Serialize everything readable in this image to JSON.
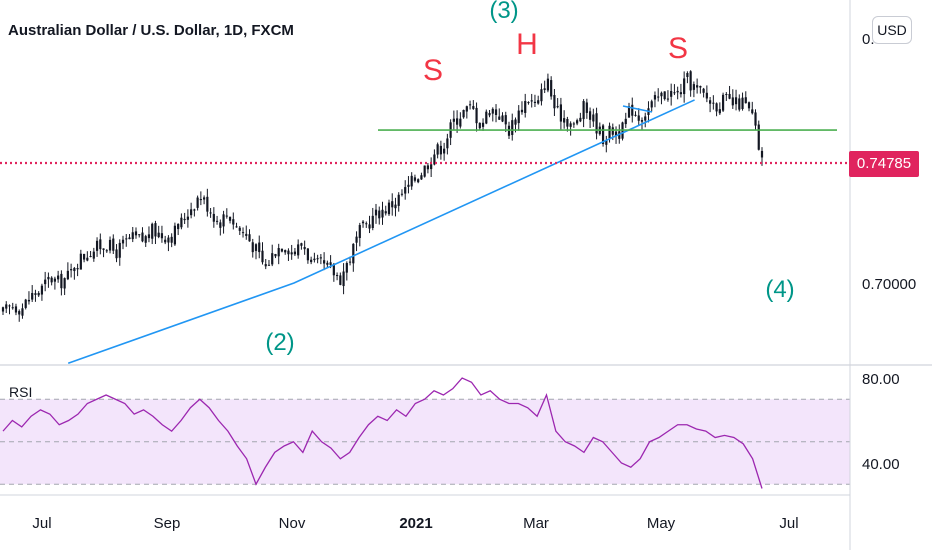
{
  "chart_data": [
    {
      "type": "candlestick",
      "title": "Australian Dollar / U.S. Dollar, 1D, FXCM",
      "currency": "USD",
      "last_price": "0.74785",
      "y_tick_labels": [
        "0.70000"
      ],
      "y_partial_label": "0.",
      "x_tick_labels": [
        "Jul",
        "Sep",
        "Nov",
        "2021",
        "Mar",
        "May",
        "Jul"
      ],
      "annotations": [
        {
          "text": "S",
          "color": "#f23645"
        },
        {
          "text": "H",
          "color": "#f23645"
        },
        {
          "text": "S",
          "color": "#f23645"
        },
        {
          "text": "(2)",
          "color": "#009688"
        },
        {
          "text": "(3)",
          "color": "#009688"
        },
        {
          "text": "(4)",
          "color": "#009688"
        }
      ],
      "close_series_approx": [
        0.688,
        0.691,
        0.69,
        0.695,
        0.697,
        0.702,
        0.7,
        0.703,
        0.709,
        0.712,
        0.714,
        0.716,
        0.712,
        0.716,
        0.718,
        0.717,
        0.721,
        0.719,
        0.719,
        0.724,
        0.73,
        0.735,
        0.73,
        0.724,
        0.728,
        0.722,
        0.719,
        0.713,
        0.706,
        0.713,
        0.716,
        0.712,
        0.716,
        0.707,
        0.707,
        0.705,
        0.702,
        0.71,
        0.72,
        0.724,
        0.728,
        0.73,
        0.733,
        0.737,
        0.742,
        0.746,
        0.752,
        0.755,
        0.764,
        0.768,
        0.77,
        0.763,
        0.77,
        0.767,
        0.761,
        0.768,
        0.774,
        0.77,
        0.782,
        0.768,
        0.766,
        0.762,
        0.77,
        0.765,
        0.758,
        0.761,
        0.76,
        0.77,
        0.766,
        0.77,
        0.774,
        0.776,
        0.775,
        0.781,
        0.777,
        0.774,
        0.771,
        0.773,
        0.771,
        0.772,
        0.766,
        0.748
      ],
      "lines": [
        {
          "name": "trendline",
          "color": "#2196f3",
          "points": [
            [
              "2020-07-14",
              0.668
            ],
            [
              "2020-11-02",
              0.7
            ],
            [
              "2021-05-17",
              0.773
            ]
          ]
        },
        {
          "name": "neckline",
          "color": "#4caf50",
          "value": 0.761
        },
        {
          "name": "last-price-line",
          "color": "#e0245e",
          "value": 0.74785
        }
      ]
    },
    {
      "type": "line",
      "name": "RSI",
      "y_tick_labels": [
        "80.00",
        "40.00"
      ],
      "band": [
        30,
        70
      ],
      "midline": 50,
      "color": "#9c27b0",
      "values_approx": [
        55,
        60,
        57,
        62,
        65,
        63,
        58,
        60,
        63,
        68,
        70,
        72,
        70,
        68,
        63,
        65,
        62,
        58,
        55,
        60,
        66,
        70,
        66,
        60,
        55,
        48,
        42,
        30,
        38,
        45,
        48,
        50,
        45,
        55,
        50,
        47,
        42,
        45,
        52,
        58,
        62,
        60,
        65,
        62,
        68,
        70,
        74,
        72,
        75,
        80,
        78,
        72,
        74,
        70,
        68,
        68,
        66,
        62,
        72,
        55,
        50,
        48,
        45,
        52,
        50,
        45,
        40,
        38,
        42,
        50,
        52,
        55,
        58,
        58,
        56,
        55,
        52,
        53,
        52,
        49,
        42,
        28
      ]
    }
  ]
}
